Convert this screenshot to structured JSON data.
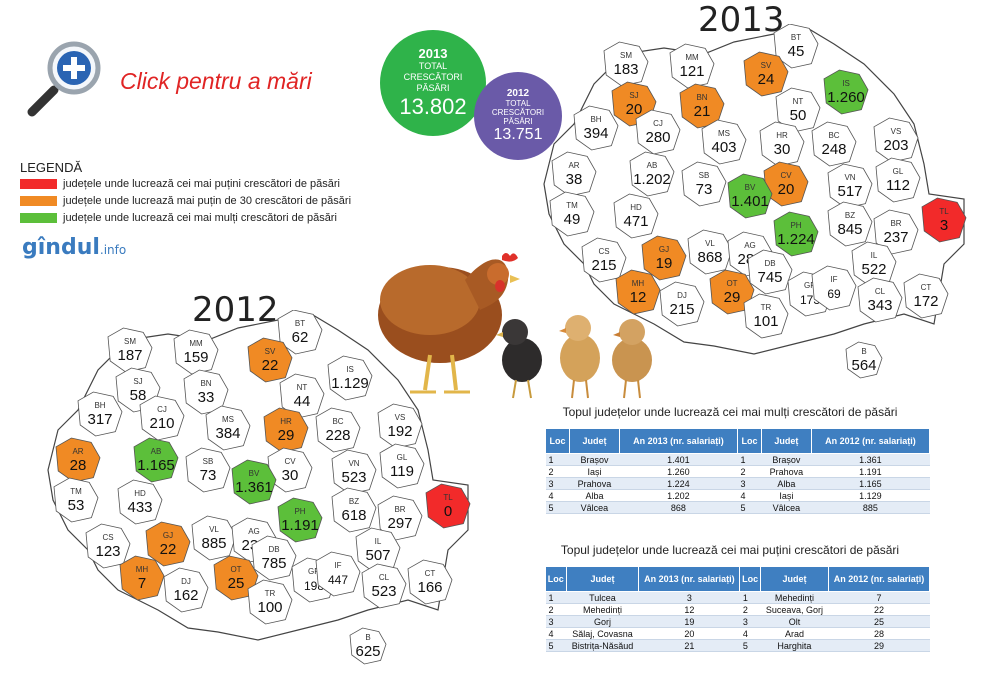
{
  "zoom": {
    "label": "Click pentru a mări"
  },
  "legend": {
    "title": "LEGENDĂ",
    "items": [
      {
        "color": "#f22a2a",
        "text": "județele unde lucrează cei mai puțini crescători de păsări"
      },
      {
        "color": "#f08a24",
        "text": "județele unde lucrează mai puțin de 30 crescători de păsări"
      },
      {
        "color": "#5cbf3a",
        "text": "județele unde lucrează cei mai mulți crescători de păsări"
      }
    ]
  },
  "logo": {
    "name": "gîndul",
    "suffix": ".info"
  },
  "totals": {
    "y2013": {
      "year": "2013",
      "label": "TOTAL CRESCĂTORI PĂSĂRI",
      "value": "13.802",
      "color": "#2fb34a"
    },
    "y2012": {
      "year": "2012",
      "label": "TOTAL CRESCĂTORI PĂSĂRI",
      "value": "13.751",
      "color": "#6a5aa8"
    }
  },
  "map2013": {
    "year": "2013",
    "counties": [
      {
        "abbr": "BT",
        "value": "45",
        "color": "white"
      },
      {
        "abbr": "SM",
        "value": "183",
        "color": "white"
      },
      {
        "abbr": "MM",
        "value": "121",
        "color": "white"
      },
      {
        "abbr": "SV",
        "value": "24",
        "color": "orange"
      },
      {
        "abbr": "IS",
        "value": "1.260",
        "color": "green"
      },
      {
        "abbr": "SJ",
        "value": "20",
        "color": "orange"
      },
      {
        "abbr": "BN",
        "value": "21",
        "color": "orange"
      },
      {
        "abbr": "NT",
        "value": "50",
        "color": "white"
      },
      {
        "abbr": "BH",
        "value": "394",
        "color": "white"
      },
      {
        "abbr": "CJ",
        "value": "280",
        "color": "white"
      },
      {
        "abbr": "MS",
        "value": "403",
        "color": "white"
      },
      {
        "abbr": "HR",
        "value": "30",
        "color": "white"
      },
      {
        "abbr": "BC",
        "value": "248",
        "color": "white"
      },
      {
        "abbr": "VS",
        "value": "203",
        "color": "white"
      },
      {
        "abbr": "AR",
        "value": "38",
        "color": "white"
      },
      {
        "abbr": "AB",
        "value": "1.202",
        "color": "white"
      },
      {
        "abbr": "SB",
        "value": "73",
        "color": "white"
      },
      {
        "abbr": "CV",
        "value": "20",
        "color": "orange"
      },
      {
        "abbr": "VN",
        "value": "517",
        "color": "white"
      },
      {
        "abbr": "GL",
        "value": "112",
        "color": "white"
      },
      {
        "abbr": "TM",
        "value": "49",
        "color": "white"
      },
      {
        "abbr": "HD",
        "value": "471",
        "color": "white"
      },
      {
        "abbr": "BV",
        "value": "1.401",
        "color": "green"
      },
      {
        "abbr": "BZ",
        "value": "845",
        "color": "white"
      },
      {
        "abbr": "BR",
        "value": "237",
        "color": "white"
      },
      {
        "abbr": "TL",
        "value": "3",
        "color": "red"
      },
      {
        "abbr": "CS",
        "value": "215",
        "color": "white"
      },
      {
        "abbr": "GJ",
        "value": "19",
        "color": "orange"
      },
      {
        "abbr": "VL",
        "value": "868",
        "color": "white"
      },
      {
        "abbr": "AG",
        "value": "281",
        "color": "white"
      },
      {
        "abbr": "PH",
        "value": "1.224",
        "color": "green"
      },
      {
        "abbr": "DB",
        "value": "745",
        "color": "white"
      },
      {
        "abbr": "IL",
        "value": "522",
        "color": "white"
      },
      {
        "abbr": "MH",
        "value": "12",
        "color": "orange"
      },
      {
        "abbr": "GR",
        "value": "173",
        "color": "white"
      },
      {
        "abbr": "IF",
        "value": "69",
        "color": "white"
      },
      {
        "abbr": "CL",
        "value": "343",
        "color": "white"
      },
      {
        "abbr": "CT",
        "value": "172",
        "color": "white"
      },
      {
        "abbr": "DJ",
        "value": "215",
        "color": "white"
      },
      {
        "abbr": "OT",
        "value": "29",
        "color": "orange"
      },
      {
        "abbr": "TR",
        "value": "101",
        "color": "white"
      },
      {
        "abbr": "B",
        "value": "564",
        "color": "white"
      }
    ]
  },
  "map2012": {
    "year": "2012",
    "counties": [
      {
        "abbr": "BT",
        "value": "62",
        "color": "white"
      },
      {
        "abbr": "SM",
        "value": "187",
        "color": "white"
      },
      {
        "abbr": "MM",
        "value": "159",
        "color": "white"
      },
      {
        "abbr": "SV",
        "value": "22",
        "color": "orange"
      },
      {
        "abbr": "IS",
        "value": "1.129",
        "color": "white"
      },
      {
        "abbr": "SJ",
        "value": "58",
        "color": "white"
      },
      {
        "abbr": "BN",
        "value": "33",
        "color": "white"
      },
      {
        "abbr": "NT",
        "value": "44",
        "color": "white"
      },
      {
        "abbr": "BH",
        "value": "317",
        "color": "white"
      },
      {
        "abbr": "CJ",
        "value": "210",
        "color": "white"
      },
      {
        "abbr": "MS",
        "value": "384",
        "color": "white"
      },
      {
        "abbr": "HR",
        "value": "29",
        "color": "orange"
      },
      {
        "abbr": "BC",
        "value": "228",
        "color": "white"
      },
      {
        "abbr": "VS",
        "value": "192",
        "color": "white"
      },
      {
        "abbr": "AR",
        "value": "28",
        "color": "orange"
      },
      {
        "abbr": "AB",
        "value": "1.165",
        "color": "green"
      },
      {
        "abbr": "SB",
        "value": "73",
        "color": "white"
      },
      {
        "abbr": "CV",
        "value": "30",
        "color": "white"
      },
      {
        "abbr": "VN",
        "value": "523",
        "color": "white"
      },
      {
        "abbr": "GL",
        "value": "119",
        "color": "white"
      },
      {
        "abbr": "TM",
        "value": "53",
        "color": "white"
      },
      {
        "abbr": "HD",
        "value": "433",
        "color": "white"
      },
      {
        "abbr": "BV",
        "value": "1.361",
        "color": "green"
      },
      {
        "abbr": "BZ",
        "value": "618",
        "color": "white"
      },
      {
        "abbr": "BR",
        "value": "297",
        "color": "white"
      },
      {
        "abbr": "TL",
        "value": "0",
        "color": "red"
      },
      {
        "abbr": "CS",
        "value": "123",
        "color": "white"
      },
      {
        "abbr": "GJ",
        "value": "22",
        "color": "orange"
      },
      {
        "abbr": "VL",
        "value": "885",
        "color": "white"
      },
      {
        "abbr": "AG",
        "value": "231",
        "color": "white"
      },
      {
        "abbr": "PH",
        "value": "1.191",
        "color": "green"
      },
      {
        "abbr": "DB",
        "value": "785",
        "color": "white"
      },
      {
        "abbr": "IL",
        "value": "507",
        "color": "white"
      },
      {
        "abbr": "MH",
        "value": "7",
        "color": "orange"
      },
      {
        "abbr": "GR",
        "value": "198",
        "color": "white"
      },
      {
        "abbr": "IF",
        "value": "447",
        "color": "white"
      },
      {
        "abbr": "CL",
        "value": "523",
        "color": "white"
      },
      {
        "abbr": "CT",
        "value": "166",
        "color": "white"
      },
      {
        "abbr": "DJ",
        "value": "162",
        "color": "white"
      },
      {
        "abbr": "OT",
        "value": "25",
        "color": "orange"
      },
      {
        "abbr": "TR",
        "value": "100",
        "color": "white"
      },
      {
        "abbr": "B",
        "value": "625",
        "color": "white"
      }
    ]
  },
  "table_most": {
    "title": "Topul județelor unde lucrează cei mai mulți crescători de păsări",
    "headers": [
      "Loc",
      "Județ",
      "An 2013 (nr. salariați)",
      "Loc",
      "Județ",
      "An 2012 (nr. salariați)"
    ],
    "rows": [
      [
        "1",
        "Brașov",
        "1.401",
        "1",
        "Brașov",
        "1.361"
      ],
      [
        "2",
        "Iași",
        "1.260",
        "2",
        "Prahova",
        "1.191"
      ],
      [
        "3",
        "Prahova",
        "1.224",
        "3",
        "Alba",
        "1.165"
      ],
      [
        "4",
        "Alba",
        "1.202",
        "4",
        "Iași",
        "1.129"
      ],
      [
        "5",
        "Vâlcea",
        "868",
        "5",
        "Vâlcea",
        "885"
      ]
    ]
  },
  "table_least": {
    "title": "Topul județelor unde lucrează cei mai puțini crescători de păsări",
    "headers": [
      "Loc",
      "Județ",
      "An 2013 (nr. salariați)",
      "Loc",
      "Județ",
      "An 2012 (nr. salariați)"
    ],
    "rows": [
      [
        "1",
        "Tulcea",
        "3",
        "1",
        "Mehedinți",
        "7"
      ],
      [
        "2",
        "Mehedinți",
        "12",
        "2",
        "Suceava, Gorj",
        "22"
      ],
      [
        "3",
        "Gorj",
        "19",
        "3",
        "Olt",
        "25"
      ],
      [
        "4",
        "Sălaj, Covasna",
        "20",
        "4",
        "Arad",
        "28"
      ],
      [
        "5",
        "Bistrița-Năsăud",
        "21",
        "5",
        "Harghita",
        "29"
      ]
    ]
  },
  "colors": {
    "white": "#ffffff",
    "orange": "#f08a24",
    "green": "#5cbf3a",
    "red": "#f22a2a"
  }
}
